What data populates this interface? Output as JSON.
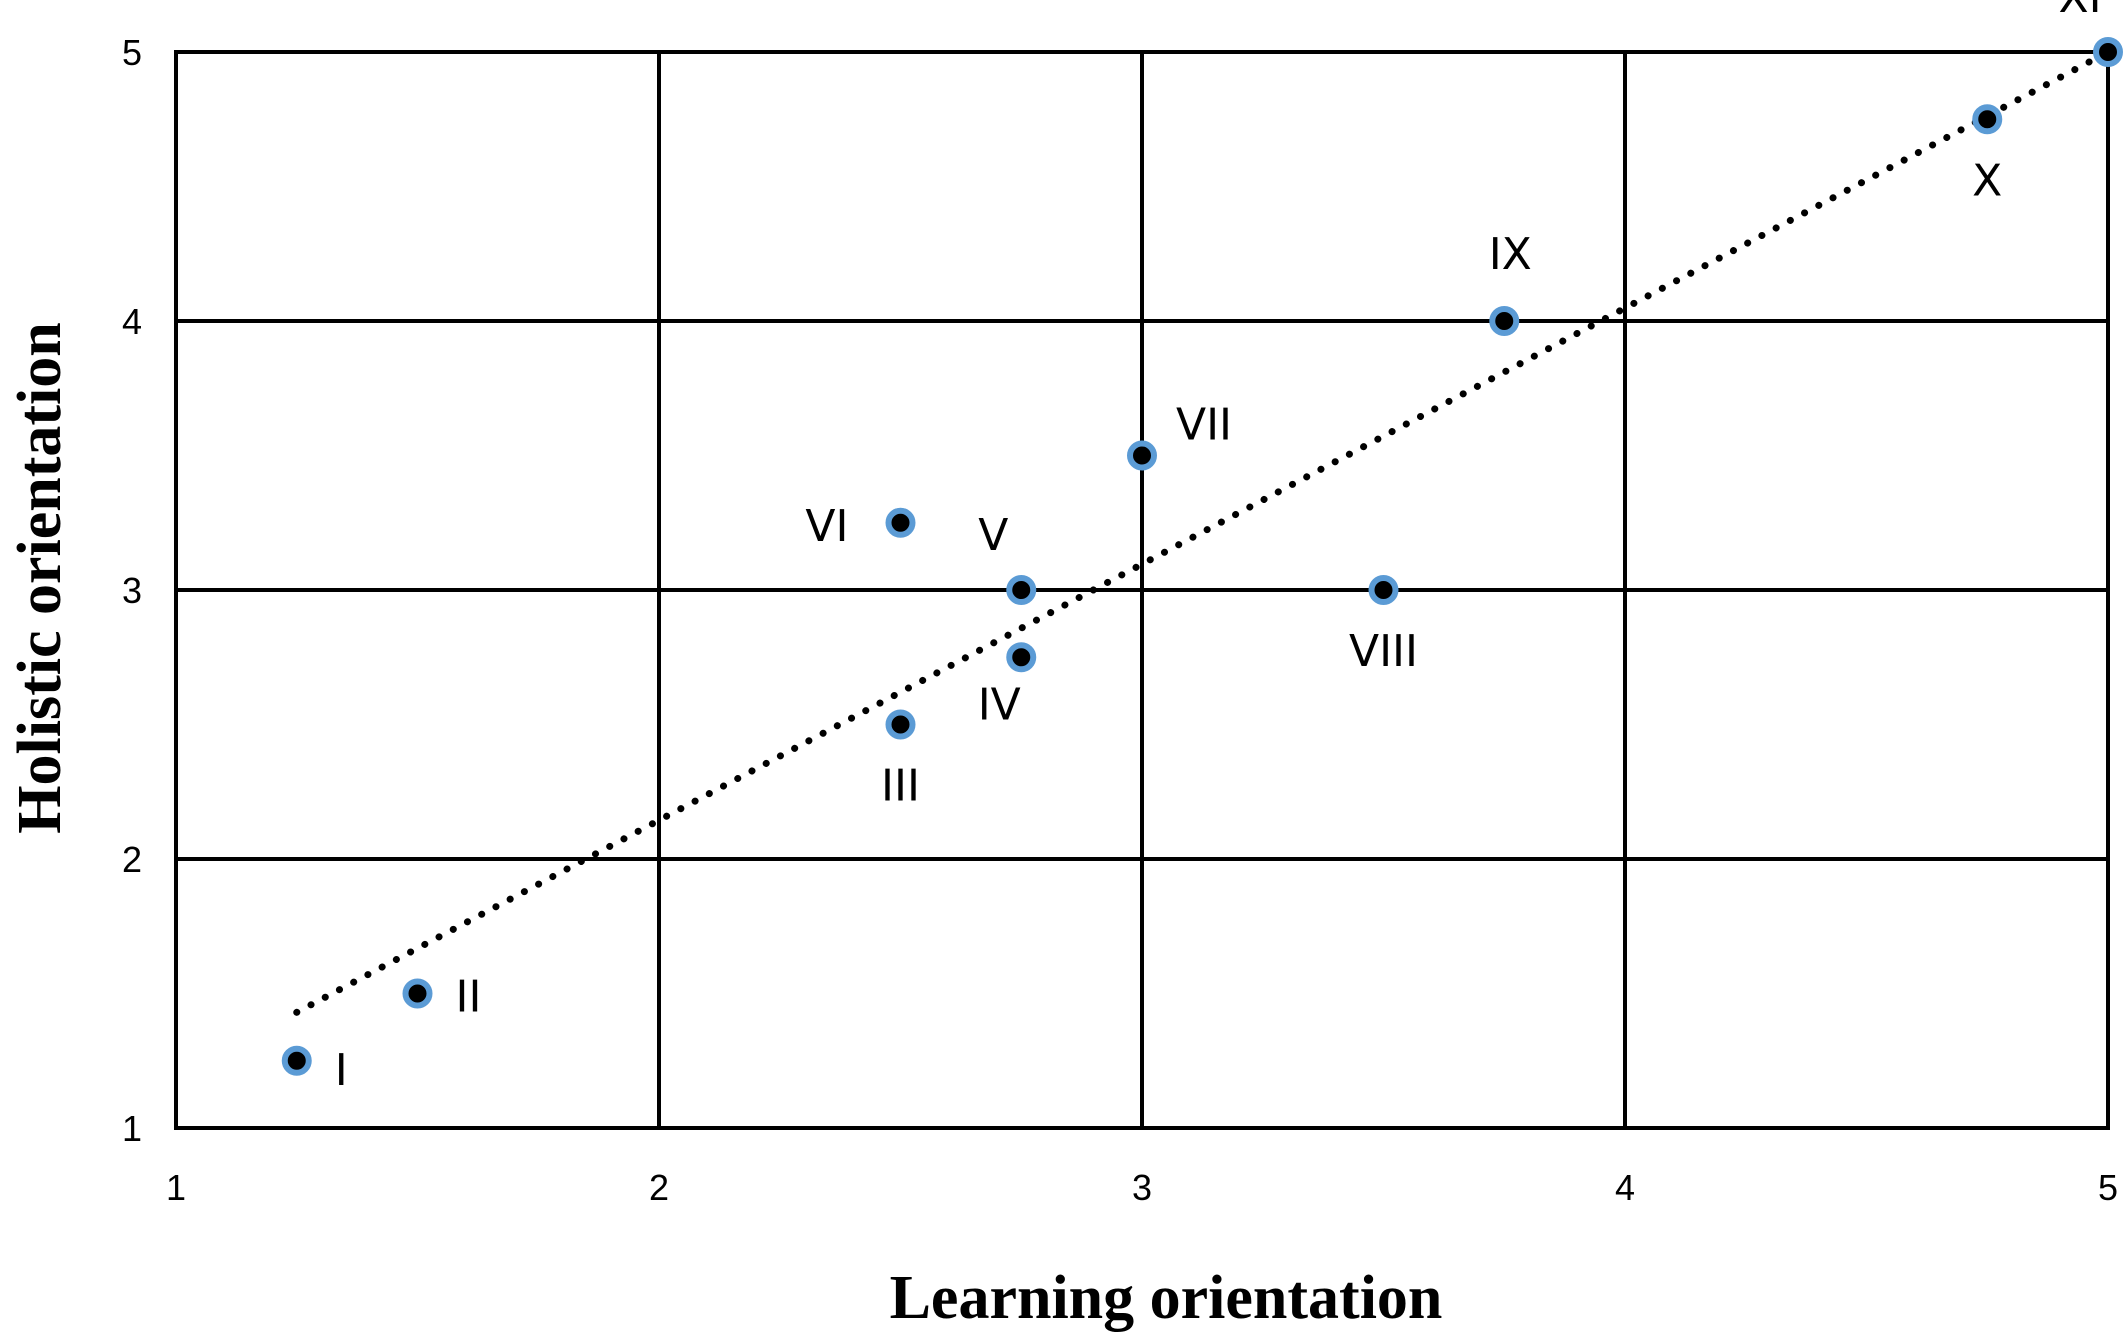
{
  "chart_data": {
    "type": "scatter",
    "xlabel": "Learning orientation",
    "ylabel": "Holistic orientation",
    "xlim": [
      1,
      5
    ],
    "ylim": [
      1,
      5
    ],
    "x_ticks": [
      "1",
      "2",
      "3",
      "4",
      "5"
    ],
    "y_ticks": [
      "1",
      "2",
      "3",
      "4",
      "5"
    ],
    "grid": true,
    "legend": "none",
    "points": [
      {
        "label": "I",
        "x": 1.25,
        "y": 1.25,
        "label_pos": "right-below"
      },
      {
        "label": "II",
        "x": 1.5,
        "y": 1.5,
        "label_pos": "right"
      },
      {
        "label": "III",
        "x": 2.5,
        "y": 2.5,
        "label_pos": "below"
      },
      {
        "label": "IV",
        "x": 2.75,
        "y": 2.75,
        "label_pos": "below-left"
      },
      {
        "label": "V",
        "x": 2.75,
        "y": 3.0,
        "label_pos": "above-left"
      },
      {
        "label": "VI",
        "x": 2.5,
        "y": 3.25,
        "label_pos": "left"
      },
      {
        "label": "VII",
        "x": 3.0,
        "y": 3.5,
        "label_pos": "above-right"
      },
      {
        "label": "VIII",
        "x": 3.5,
        "y": 3.0,
        "label_pos": "below"
      },
      {
        "label": "IX",
        "x": 3.75,
        "y": 4.0,
        "label_pos": "above"
      },
      {
        "label": "X",
        "x": 4.75,
        "y": 4.75,
        "label_pos": "below"
      },
      {
        "label": "XI",
        "x": 5.0,
        "y": 5.0,
        "label_pos": "above-left"
      }
    ],
    "trendline": {
      "style": "dotted",
      "x": [
        1.25,
        5.0
      ],
      "y": [
        1.43,
        5.0
      ]
    },
    "colors": {
      "point_fill": "#000000",
      "point_ring": "#5b9bd5",
      "grid": "#000000",
      "trendline": "#000000"
    }
  }
}
